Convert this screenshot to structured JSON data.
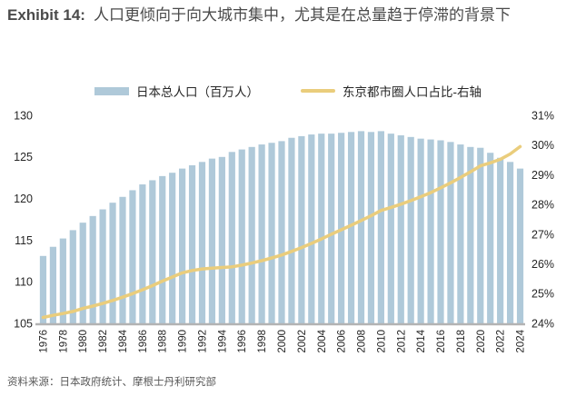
{
  "header": {
    "exhibit_label": "Exhibit 14:",
    "title": "人口更倾向于向大城市集中，尤其是在总量趋于停滞的背景下"
  },
  "source": "资料来源：日本政府统计、摩根士丹利研究部",
  "colors": {
    "bar": "#afc9d9",
    "line": "#eacd7c",
    "baseline": "#b3b3b3",
    "title_text": "#4a4a4a",
    "axis_text": "#262626",
    "source_text": "#595959"
  },
  "chart_data": {
    "type": "bar",
    "note": "combo chart: bars on left axis, line on right axis",
    "grid": false,
    "legend_position": "top",
    "x_tick_step": 2,
    "x": [
      1976,
      1977,
      1978,
      1979,
      1980,
      1981,
      1982,
      1983,
      1984,
      1985,
      1986,
      1987,
      1988,
      1989,
      1990,
      1991,
      1992,
      1993,
      1994,
      1995,
      1996,
      1997,
      1998,
      1999,
      2000,
      2001,
      2002,
      2003,
      2004,
      2005,
      2006,
      2007,
      2008,
      2009,
      2010,
      2011,
      2012,
      2013,
      2014,
      2015,
      2016,
      2017,
      2018,
      2019,
      2020,
      2021,
      2022,
      2023,
      2024
    ],
    "series": [
      {
        "name": "日本总人口（百万人）",
        "type": "bar",
        "axis": "left",
        "values": [
          113.1,
          114.2,
          115.2,
          116.2,
          117.1,
          117.9,
          118.7,
          119.5,
          120.2,
          121.0,
          121.7,
          122.2,
          122.7,
          123.1,
          123.6,
          124.0,
          124.4,
          124.8,
          125.0,
          125.6,
          125.9,
          126.2,
          126.5,
          126.7,
          126.9,
          127.3,
          127.5,
          127.7,
          127.8,
          127.8,
          127.9,
          128.0,
          128.1,
          128.0,
          128.1,
          127.8,
          127.6,
          127.4,
          127.2,
          127.1,
          127.0,
          126.8,
          126.5,
          126.2,
          126.1,
          125.5,
          124.9,
          124.4,
          123.6
        ]
      },
      {
        "name": "东京都市圈人口占比-右轴",
        "type": "line",
        "axis": "right",
        "values": [
          24.2,
          24.27,
          24.33,
          24.4,
          24.5,
          24.58,
          24.67,
          24.77,
          24.88,
          25.0,
          25.13,
          25.27,
          25.42,
          25.56,
          25.7,
          25.78,
          25.83,
          25.86,
          25.88,
          25.9,
          25.96,
          26.03,
          26.11,
          26.2,
          26.3,
          26.42,
          26.55,
          26.69,
          26.84,
          27.0,
          27.15,
          27.3,
          27.46,
          27.62,
          27.8,
          27.9,
          28.01,
          28.13,
          28.26,
          28.4,
          28.56,
          28.73,
          28.91,
          29.1,
          29.3,
          29.4,
          29.52,
          29.7,
          29.95
        ]
      }
    ],
    "left_axis": {
      "min": 105,
      "max": 130,
      "ticks": [
        105,
        110,
        115,
        120,
        125,
        130
      ]
    },
    "right_axis": {
      "min": 24,
      "max": 31,
      "ticks": [
        24,
        25,
        26,
        27,
        28,
        29,
        30,
        31
      ],
      "unit": "%"
    }
  }
}
